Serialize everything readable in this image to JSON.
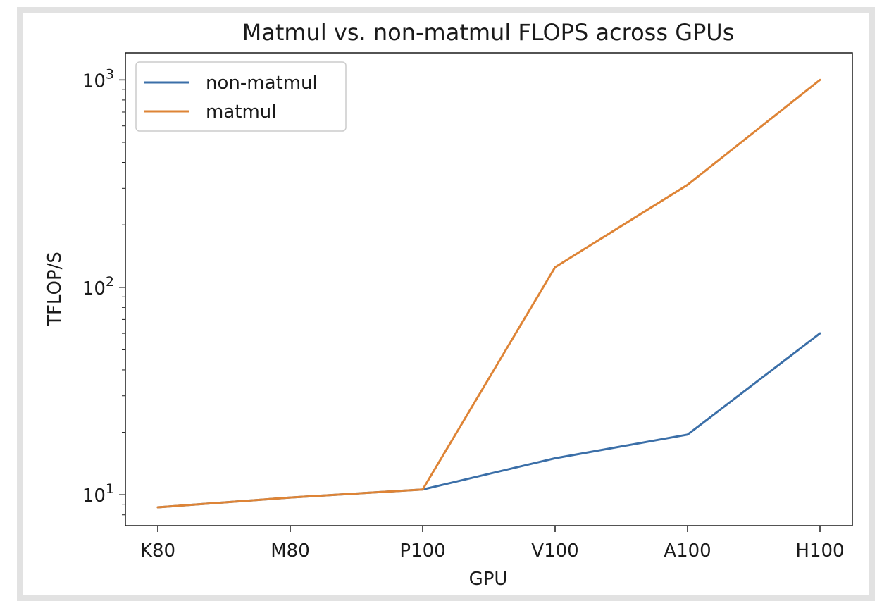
{
  "chart_data": {
    "type": "line",
    "title": "Matmul vs. non-matmul FLOPS across GPUs",
    "xlabel": "GPU",
    "ylabel": "TFLOP/S",
    "yscale": "log",
    "ylim": [
      7.1,
      1350
    ],
    "categories": [
      "K80",
      "M80",
      "P100",
      "V100",
      "A100",
      "H100"
    ],
    "y_ticks": [
      {
        "base": "10",
        "exp": "1",
        "value": 10
      },
      {
        "base": "10",
        "exp": "2",
        "value": 100
      },
      {
        "base": "10",
        "exp": "3",
        "value": 1000
      }
    ],
    "series": [
      {
        "name": "non-matmul",
        "color": "#3b6fa8",
        "values": [
          8.7,
          9.7,
          10.6,
          15,
          19.5,
          60
        ]
      },
      {
        "name": "matmul",
        "color": "#de8436",
        "values": [
          8.7,
          9.7,
          10.6,
          125,
          312,
          1000
        ]
      }
    ],
    "grid": false,
    "legend_position": "top-left"
  }
}
